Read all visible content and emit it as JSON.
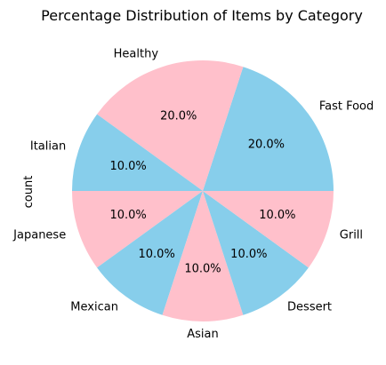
{
  "chart_data": {
    "type": "pie",
    "title": "Percentage Distribution of Items by Category",
    "ylabel": "count",
    "start_angle_deg": 0,
    "direction": "counterclockwise",
    "categories": [
      "Fast Food",
      "Healthy",
      "Italian",
      "Japanese",
      "Mexican",
      "Asian",
      "Dessert",
      "Grill"
    ],
    "values": [
      20.0,
      20.0,
      10.0,
      10.0,
      10.0,
      10.0,
      10.0,
      10.0
    ],
    "value_labels": [
      "20.0%",
      "20.0%",
      "10.0%",
      "10.0%",
      "10.0%",
      "10.0%",
      "10.0%",
      "10.0%"
    ],
    "colors": [
      "#87ceeb",
      "#ffc0cb",
      "#87ceeb",
      "#ffc0cb",
      "#87ceeb",
      "#ffc0cb",
      "#87ceeb",
      "#ffc0cb"
    ]
  }
}
